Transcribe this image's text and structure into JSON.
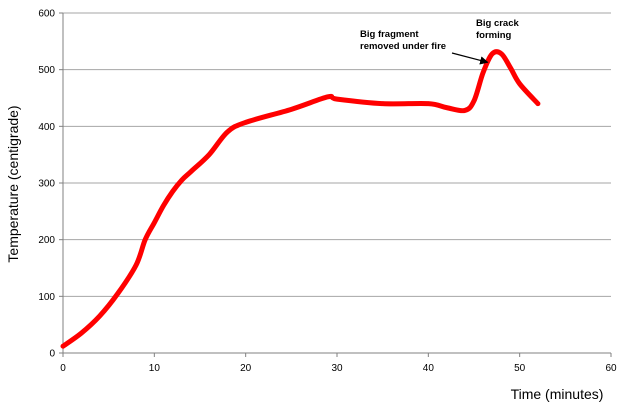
{
  "chart_data": {
    "type": "line",
    "title": "",
    "xlabel": "Time (minutes)",
    "ylabel": "Temperature (centigrade)",
    "xlim": [
      0,
      60
    ],
    "ylim": [
      0,
      600
    ],
    "x_ticks": [
      0,
      10,
      20,
      30,
      40,
      50,
      60
    ],
    "y_ticks": [
      0,
      100,
      200,
      300,
      400,
      500,
      600
    ],
    "grid": "horizontal",
    "legend": "none",
    "series": [
      {
        "color": "#ff0000",
        "x": [
          0,
          2,
          4,
          6,
          8,
          9,
          10,
          11,
          12,
          13,
          14,
          16,
          18,
          20,
          25,
          29,
          30,
          35,
          40,
          42,
          44,
          45,
          46,
          47,
          48,
          49,
          50,
          52
        ],
        "y": [
          12,
          35,
          65,
          105,
          155,
          200,
          230,
          260,
          285,
          305,
          320,
          350,
          390,
          407,
          430,
          452,
          448,
          440,
          440,
          433,
          428,
          445,
          495,
          528,
          528,
          503,
          475,
          440
        ]
      }
    ],
    "annotations": [
      {
        "lines": [
          "Big fragment",
          "removed under fire"
        ],
        "arrow_to": {
          "x": 46.5,
          "y": 520
        }
      },
      {
        "lines": [
          "Big crack",
          "forming"
        ]
      }
    ]
  }
}
